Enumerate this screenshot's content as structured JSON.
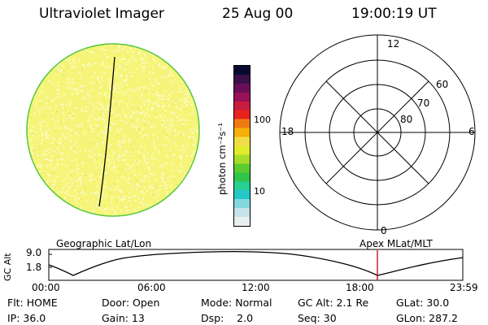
{
  "header": {
    "title": "Ultraviolet Imager",
    "date": "25 Aug 00",
    "time": "19:00:19 UT"
  },
  "colorbar": {
    "unit_label": "photon cm⁻²s⁻¹",
    "ticks": [
      "100",
      "10"
    ],
    "colors": [
      "#0a0a30",
      "#3b0f4a",
      "#6b0e59",
      "#98115a",
      "#c81d3f",
      "#e8231e",
      "#f07a12",
      "#f6b00a",
      "#f1dc47",
      "#e0ec2c",
      "#a7dd2a",
      "#5ccb2f",
      "#32c34a",
      "#27cf94",
      "#25c8c8",
      "#85d8e0",
      "#c5e3e8",
      "#e9eeee"
    ]
  },
  "globe": {
    "fill_color": "#f6f57a",
    "speckle_color": "#fbfbc8",
    "limb_color": "#55c83c"
  },
  "polar": {
    "top_label": "12",
    "bottom_label": "0",
    "left_label": "18",
    "right_label": "6",
    "lat_labels": [
      "60",
      "70",
      "80"
    ]
  },
  "timeline": {
    "left_caption": "Geographic Lat/Lon",
    "right_caption": "Apex MLat/MLT",
    "axis_title": "GC Alt",
    "y_ticks": [
      "9.0",
      "1.8"
    ],
    "x_ticks": [
      "00:00",
      "06:00",
      "12:00",
      "18:00",
      "23:59"
    ],
    "marker_time": "19:00:19"
  },
  "info": {
    "row1": [
      "Flt: HOME",
      "Door: Open",
      "Mode: Normal",
      "GC Alt: 2.1 Re",
      "GLat: 30.0"
    ],
    "row2": [
      "IP: 36.0",
      "Gain: 13",
      "Dsp:    2.0",
      "Seq: 30",
      "GLon: 287.2"
    ]
  }
}
